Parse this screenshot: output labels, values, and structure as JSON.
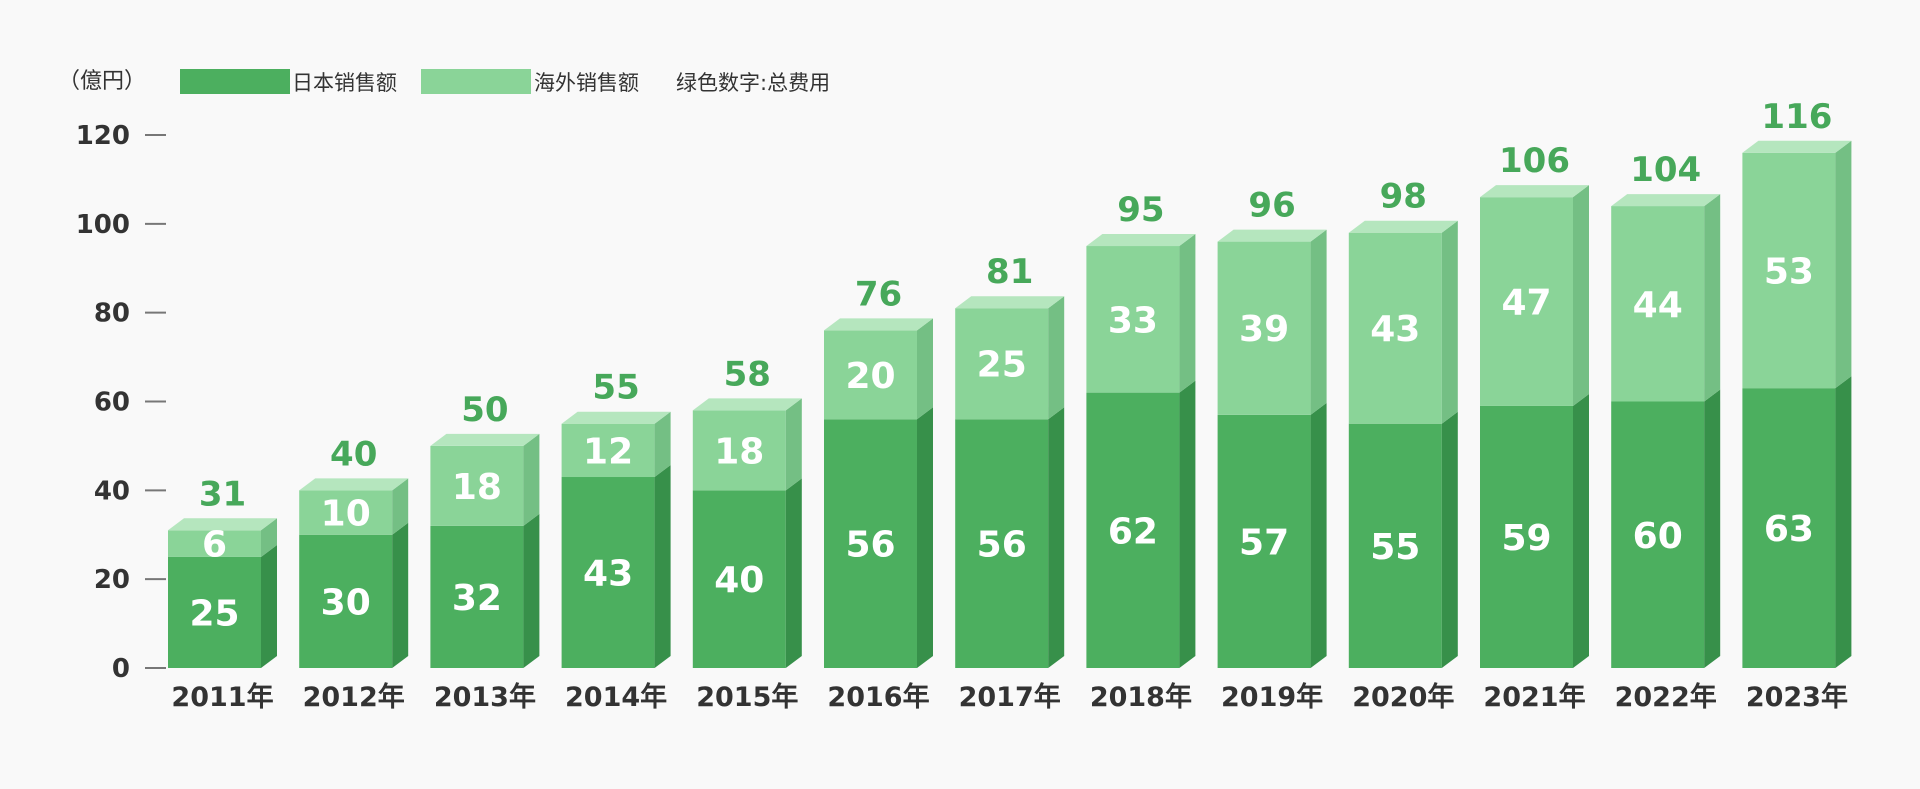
{
  "unit_label": "（億円）",
  "legend": {
    "japan": "日本销售额",
    "overseas": "海外销售额",
    "note": "绿色数字:总费用"
  },
  "colors": {
    "japan_front": "#4caf5f",
    "japan_side": "#37904a",
    "overseas_front": "#8ad498",
    "overseas_side": "#74bf84",
    "overseas_top": "#b5e6be",
    "total_text": "#47a85a",
    "axis": "#777777"
  },
  "chart_data": {
    "type": "bar",
    "stacked": true,
    "categories": [
      "2011年",
      "2012年",
      "2013年",
      "2014年",
      "2015年",
      "2016年",
      "2017年",
      "2018年",
      "2019年",
      "2020年",
      "2021年",
      "2022年",
      "2023年"
    ],
    "series": [
      {
        "name": "日本销售额",
        "values": [
          25,
          30,
          32,
          43,
          40,
          56,
          56,
          62,
          57,
          55,
          59,
          60,
          63
        ]
      },
      {
        "name": "海外销售额",
        "values": [
          6,
          10,
          18,
          12,
          18,
          20,
          25,
          33,
          39,
          43,
          47,
          44,
          53
        ]
      }
    ],
    "totals": [
      31,
      40,
      50,
      55,
      58,
      76,
      81,
      95,
      96,
      98,
      106,
      104,
      116
    ],
    "ylim": [
      0,
      120
    ],
    "yticks": [
      0,
      20,
      40,
      60,
      80,
      100,
      120
    ],
    "grid": false,
    "legend_position": "top-left"
  }
}
